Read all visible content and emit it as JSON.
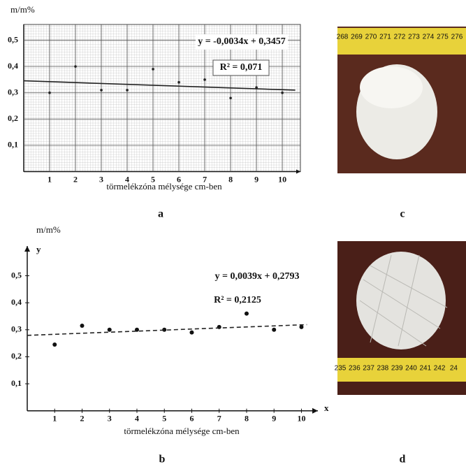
{
  "chart_data": [
    {
      "type": "scatter",
      "ylabel": "m/m%",
      "xlabel": "törmelékzóna mélysége cm-ben",
      "series": [
        {
          "x": [
            1,
            2,
            3,
            4,
            5,
            6,
            7,
            8,
            9,
            10
          ],
          "values": [
            0.3,
            0.4,
            0.31,
            0.31,
            0.39,
            0.34,
            0.35,
            0.28,
            0.32,
            0.3
          ],
          "color": "#222"
        },
        {
          "type": "line",
          "x": [
            0,
            10.5
          ],
          "values": [
            0.3457,
            0.31
          ],
          "color": "#222",
          "dashed": false
        }
      ],
      "annotations": [
        "y = -0,0034x + 0,3457",
        "R² = 0,071"
      ],
      "xlim": [
        0,
        10.7
      ],
      "ylim": [
        0,
        0.56
      ],
      "xticks": [
        1,
        2,
        3,
        4,
        5,
        6,
        7,
        8,
        9,
        10
      ],
      "yticks": [
        {
          "value": 0.1,
          "label": "0,1"
        },
        {
          "value": 0.2,
          "label": "0,2"
        },
        {
          "value": 0.3,
          "label": "0,3"
        },
        {
          "value": 0.4,
          "label": "0,4"
        },
        {
          "value": 0.5,
          "label": "0,5"
        }
      ],
      "grid": true
    },
    {
      "type": "scatter",
      "ylabel": "m/m%",
      "xlabel": "törmelékzóna mélysége cm-ben",
      "x_axis_letter": "x",
      "y_axis_letter": "y",
      "series": [
        {
          "x": [
            1,
            2,
            3,
            4,
            5,
            6,
            7,
            8,
            9,
            10
          ],
          "values": [
            0.245,
            0.315,
            0.3,
            0.3,
            0.3,
            0.29,
            0.31,
            0.36,
            0.3,
            0.31
          ],
          "color": "#111"
        },
        {
          "type": "line",
          "x": [
            0,
            10.2
          ],
          "values": [
            0.2793,
            0.319
          ],
          "color": "#222",
          "dashed": true
        }
      ],
      "annotations": [
        "y = 0,0039x + 0,2793",
        "R² = 0,2125"
      ],
      "xlim": [
        0,
        10.6
      ],
      "ylim": [
        0,
        0.61
      ],
      "xticks": [
        1,
        2,
        3,
        4,
        5,
        6,
        7,
        8,
        9,
        10
      ],
      "yticks": [
        {
          "value": 0.1,
          "label": "0,1"
        },
        {
          "value": 0.2,
          "label": "0,2"
        },
        {
          "value": 0.3,
          "label": "0,3"
        },
        {
          "value": 0.4,
          "label": "0,4"
        },
        {
          "value": 0.5,
          "label": "0,5"
        }
      ],
      "grid": false
    }
  ],
  "panels": [
    "a",
    "b",
    "c",
    "d"
  ],
  "photos": [
    {
      "ruler": [
        "268",
        "269",
        "270",
        "271",
        "272",
        "273",
        "274",
        "275",
        "276"
      ]
    },
    {
      "ruler": [
        "235",
        "236",
        "237",
        "238",
        "239",
        "240",
        "241",
        "242",
        "24"
      ]
    }
  ]
}
